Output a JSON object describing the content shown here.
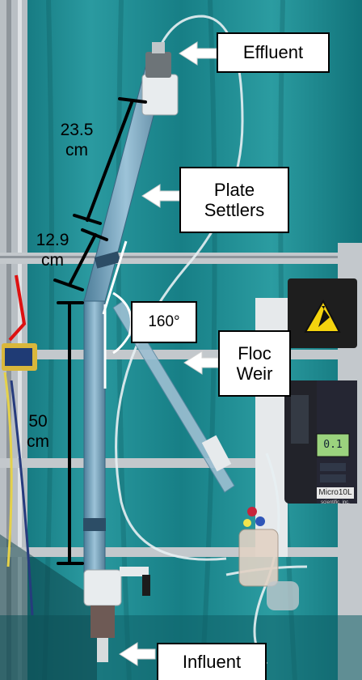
{
  "labels": {
    "effluent": "Effluent",
    "plate_settlers_line1": "Plate",
    "plate_settlers_line2": "Settlers",
    "floc_weir_line1": "Floc",
    "floc_weir_line2": "Weir",
    "influent": "Influent",
    "angle": "160°"
  },
  "measurements": {
    "top_value": "23.5",
    "top_unit": "cm",
    "middle_value": "12.9",
    "middle_unit": "cm",
    "bottom_value": "50",
    "bottom_unit": "cm"
  },
  "pump_display": {
    "brand": "Micro10L",
    "maker": "scientific, inc.",
    "readout": "0.1"
  },
  "colors": {
    "background_curtain": "#1d8a8f",
    "tube": "#7fa9c4",
    "frame": "#c9ced2",
    "label_bg": "#ffffff",
    "arrow": "#ffffff"
  }
}
